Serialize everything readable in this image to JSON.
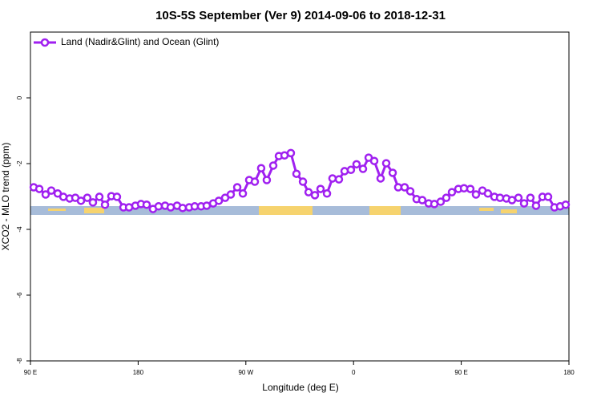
{
  "chart_data": {
    "type": "line",
    "title": "10S-5S September (Ver 9)   2014-09-06 to 2018-12-31",
    "xlabel": "Longitude (deg E)",
    "ylabel": "XCO2 - MLO trend (ppm)",
    "xlim": [
      90,
      540
    ],
    "ylim": [
      -8,
      2
    ],
    "xticks": [
      {
        "value": 90,
        "label": "90 E"
      },
      {
        "value": 180,
        "label": "180"
      },
      {
        "value": 270,
        "label": "90 W"
      },
      {
        "value": 360,
        "label": "0"
      },
      {
        "value": 450,
        "label": "90 E"
      },
      {
        "value": 540,
        "label": "180"
      }
    ],
    "yticks": [
      -8,
      -6,
      -4,
      -2,
      0
    ],
    "legend": "top-left",
    "x": [
      92.7,
      97.4,
      102.7,
      107.4,
      112.8,
      117.5,
      122.8,
      127.5,
      132.2,
      137.5,
      142.2,
      147.6,
      152.3,
      157.6,
      162.3,
      167.7,
      172.4,
      177.7,
      182.4,
      187.1,
      192.4,
      197.1,
      202.5,
      207.2,
      212.5,
      217.2,
      222.6,
      227.3,
      232.6,
      237.3,
      242.7,
      247.4,
      252.7,
      257.4,
      262.8,
      267.5,
      272.8,
      277.5,
      282.8,
      287.5,
      292.9,
      297.6,
      302.3,
      307.6,
      312.3,
      317.7,
      322.4,
      327.7,
      332.4,
      337.8,
      342.4,
      347.8,
      352.5,
      357.8,
      362.5,
      367.9,
      372.6,
      377.3,
      382.6,
      387.3,
      392.7,
      397.3,
      402.7,
      407.4,
      412.7,
      417.4,
      422.8,
      427.5,
      432.8,
      437.5,
      442.2,
      447.6,
      452.3,
      457.6,
      462.3,
      467.7,
      472.3,
      477.7,
      482.4,
      487.7,
      492.4,
      497.8,
      502.5,
      507.8,
      512.5,
      517.9,
      522.6,
      527.9,
      532.6,
      537.3
    ],
    "series": [
      {
        "name": "Land (Nadir&Glint) and Ocean (Glint)",
        "color": "#a020f0",
        "values": [
          -2.72,
          -2.77,
          -2.94,
          -2.82,
          -2.91,
          -3.01,
          -3.06,
          -3.04,
          -3.13,
          -3.04,
          -3.18,
          -3.01,
          -3.25,
          -2.99,
          -3.01,
          -3.33,
          -3.33,
          -3.28,
          -3.23,
          -3.25,
          -3.38,
          -3.3,
          -3.28,
          -3.33,
          -3.28,
          -3.35,
          -3.33,
          -3.3,
          -3.3,
          -3.28,
          -3.21,
          -3.13,
          -3.04,
          -2.94,
          -2.72,
          -2.91,
          -2.5,
          -2.55,
          -2.14,
          -2.5,
          -2.06,
          -1.77,
          -1.75,
          -1.68,
          -2.31,
          -2.55,
          -2.87,
          -2.96,
          -2.77,
          -2.91,
          -2.45,
          -2.48,
          -2.23,
          -2.19,
          -2.02,
          -2.16,
          -1.82,
          -1.92,
          -2.45,
          -1.99,
          -2.28,
          -2.72,
          -2.72,
          -2.84,
          -3.08,
          -3.11,
          -3.21,
          -3.23,
          -3.16,
          -3.04,
          -2.87,
          -2.77,
          -2.75,
          -2.77,
          -2.94,
          -2.82,
          -2.91,
          -3.01,
          -3.04,
          -3.06,
          -3.11,
          -3.04,
          -3.21,
          -3.04,
          -3.28,
          -3.01,
          -3.01,
          -3.33,
          -3.3,
          -3.25
        ]
      }
    ]
  }
}
